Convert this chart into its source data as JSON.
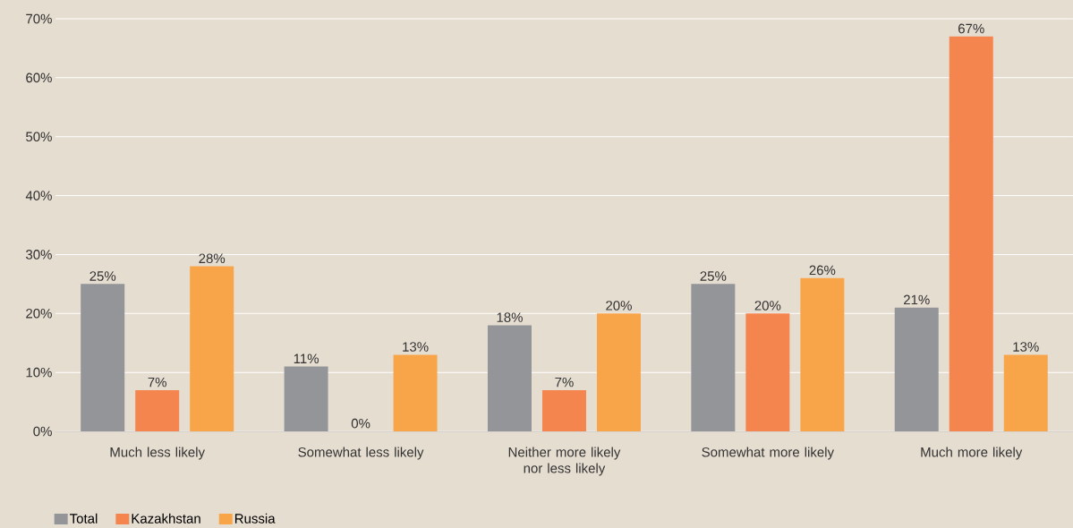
{
  "chart_data": {
    "type": "bar",
    "categories": [
      "Much less likely",
      "Somewhat less likely",
      "Neither more likely nor less likely",
      "Somewhat more likely",
      "Much more likely"
    ],
    "series": [
      {
        "name": "Total",
        "color": "#939598",
        "values": [
          25,
          11,
          18,
          25,
          21
        ],
        "value_labels": [
          "25%",
          "11%",
          "18%",
          "25%",
          "21%"
        ]
      },
      {
        "name": "Kazakhstan",
        "color": "#f4854e",
        "values": [
          7,
          0,
          7,
          20,
          67
        ],
        "value_labels": [
          "7%",
          "0%",
          "7%",
          "20%",
          "67%"
        ]
      },
      {
        "name": "Russia",
        "color": "#f8a54a",
        "values": [
          28,
          13,
          20,
          26,
          13
        ],
        "value_labels": [
          "28%",
          "13%",
          "20%",
          "26%",
          "13%"
        ]
      }
    ],
    "ylim": [
      0,
      70
    ],
    "yticks": [
      {
        "value": 0,
        "label": "0%"
      },
      {
        "value": 10,
        "label": "10%"
      },
      {
        "value": 20,
        "label": "20%"
      },
      {
        "value": 30,
        "label": "30%"
      },
      {
        "value": 40,
        "label": "40%"
      },
      {
        "value": 50,
        "label": "50%"
      },
      {
        "value": 60,
        "label": "60%"
      },
      {
        "value": 70,
        "label": "70%"
      }
    ],
    "grid": "y",
    "legend": "bottom left"
  }
}
